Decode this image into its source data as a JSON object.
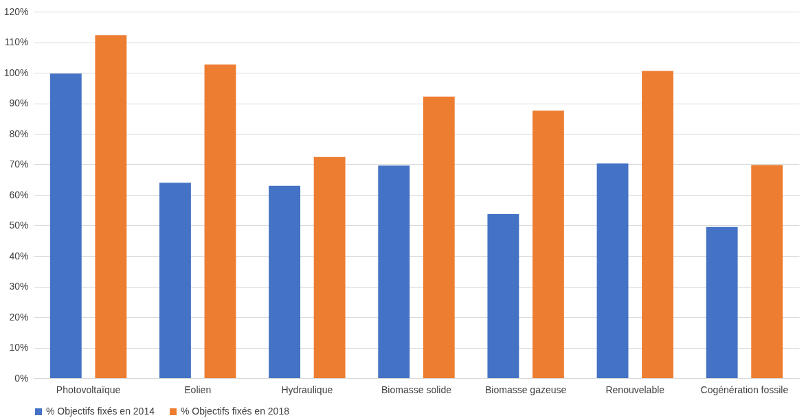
{
  "chart_data": {
    "type": "bar",
    "categories": [
      "Photovoltaïque",
      "Eolien",
      "Hydraulique",
      "Biomasse solide",
      "Biomasse gazeuse",
      "Renouvelable",
      "Cogénération fossile"
    ],
    "series": [
      {
        "name": "% Objectifs fixés en 2014",
        "color": "#4472c4",
        "values": [
          99.7,
          64.0,
          63.0,
          69.6,
          53.7,
          70.3,
          49.5
        ]
      },
      {
        "name": "% Objectifs fixés en 2018",
        "color": "#ed7d31",
        "values": [
          112.3,
          102.7,
          72.4,
          92.2,
          87.6,
          100.6,
          69.8
        ]
      }
    ],
    "ylim": [
      0,
      120
    ],
    "yticks": [
      {
        "value": 0,
        "label": "0%"
      },
      {
        "value": 10,
        "label": "10%"
      },
      {
        "value": 20,
        "label": "20%"
      },
      {
        "value": 30,
        "label": "30%"
      },
      {
        "value": 40,
        "label": "40%"
      },
      {
        "value": 50,
        "label": "50%"
      },
      {
        "value": 60,
        "label": "60%"
      },
      {
        "value": 70,
        "label": "70%"
      },
      {
        "value": 80,
        "label": "80%"
      },
      {
        "value": 90,
        "label": "90%"
      },
      {
        "value": 100,
        "label": "100%"
      },
      {
        "value": 110,
        "label": "110%"
      },
      {
        "value": 120,
        "label": "120%"
      }
    ],
    "grid": "y",
    "legend": "bottom"
  }
}
